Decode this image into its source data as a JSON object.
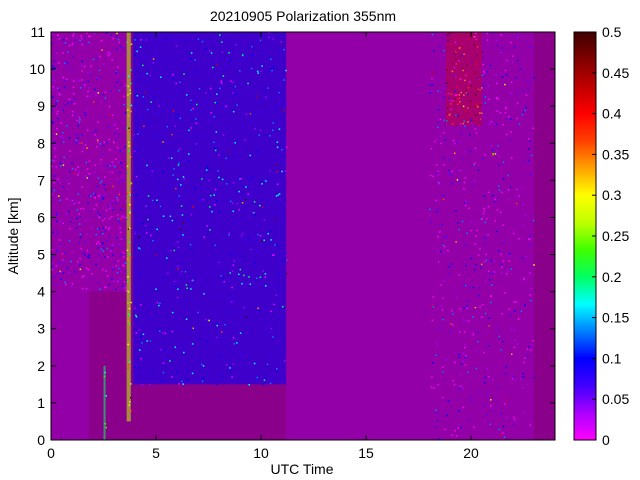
{
  "chart_data": {
    "type": "heatmap",
    "title": "20210905 Polarization 355nm",
    "xlabel": "UTC Time",
    "ylabel": "Altitude [km]",
    "xlim": [
      0,
      24
    ],
    "ylim": [
      0,
      11
    ],
    "x_ticks": [
      0,
      5,
      10,
      15,
      20
    ],
    "x_tick_labels": [
      "0",
      "5",
      "10",
      "15",
      "20"
    ],
    "y_ticks": [
      0,
      1,
      2,
      3,
      4,
      5,
      6,
      7,
      8,
      9,
      10,
      11
    ],
    "y_tick_labels": [
      "0",
      "1",
      "2",
      "3",
      "4",
      "5",
      "6",
      "7",
      "8",
      "9",
      "10",
      "11"
    ],
    "colorbar": {
      "colormap": "hsv-like (magenta-blue-cyan-green-yellow-orange-red-dark red)",
      "range": [
        0,
        0.5
      ],
      "ticks": [
        0,
        0.05,
        0.1,
        0.15,
        0.2,
        0.25,
        0.3,
        0.35,
        0.4,
        0.45,
        0.5
      ],
      "tick_labels": [
        "0",
        "0.05",
        "0.1",
        "0.15",
        "0.2",
        "0.25",
        "0.3",
        "0.35",
        "0.4",
        "0.45",
        "0.5"
      ],
      "stops": [
        "#ff00ff",
        "#aa00ff",
        "#4000ff",
        "#0000ff",
        "#0080ff",
        "#00ffff",
        "#00ff60",
        "#40ff00",
        "#c0ff00",
        "#ffff00",
        "#ffa000",
        "#ff4000",
        "#ff0000",
        "#c00000",
        "#800000",
        "#400000"
      ]
    },
    "background_value": 0.03,
    "background_color": "#8b008b",
    "regions": [
      {
        "x": [
          0,
          1.8
        ],
        "y": [
          0,
          4
        ],
        "desc": "low values with scattered noise",
        "level": 0.03
      },
      {
        "x": [
          0,
          3.6
        ],
        "y": [
          4,
          11
        ],
        "desc": "noisy low values",
        "level": 0.04
      },
      {
        "x": [
          2.5,
          2.6
        ],
        "y": [
          0,
          2
        ],
        "desc": "thin streak",
        "level": 0.2
      },
      {
        "x": [
          3.6,
          3.8
        ],
        "y": [
          0.5,
          11
        ],
        "desc": "vertical streak",
        "level": 0.27
      },
      {
        "x": [
          3.9,
          11.2
        ],
        "y": [
          1.5,
          11
        ],
        "desc": "noisy elevated values",
        "level": 0.1
      },
      {
        "x": [
          11.2,
          18
        ],
        "y": [
          0,
          11
        ],
        "desc": "uniform low",
        "level": 0.03
      },
      {
        "x": [
          18.8,
          20.5
        ],
        "y": [
          8.5,
          11
        ],
        "desc": "elevated patch",
        "level": 0.42
      },
      {
        "x": [
          18,
          23
        ],
        "y": [
          0,
          11
        ],
        "desc": "noisy low values",
        "level": 0.04
      }
    ]
  }
}
